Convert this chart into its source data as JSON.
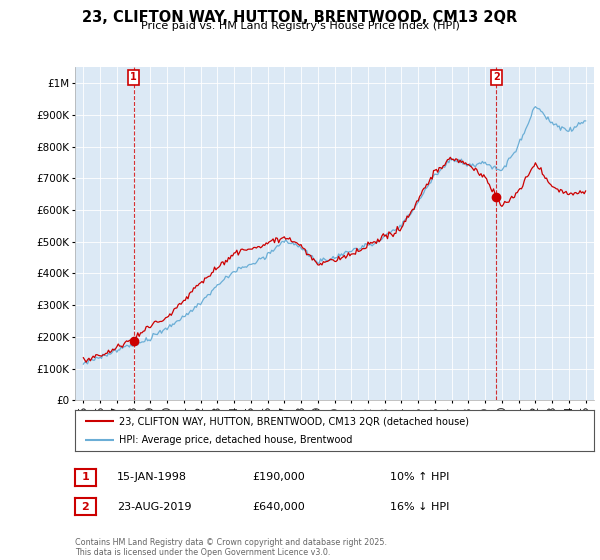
{
  "title": "23, CLIFTON WAY, HUTTON, BRENTWOOD, CM13 2QR",
  "subtitle": "Price paid vs. HM Land Registry's House Price Index (HPI)",
  "legend_line1": "23, CLIFTON WAY, HUTTON, BRENTWOOD, CM13 2QR (detached house)",
  "legend_line2": "HPI: Average price, detached house, Brentwood",
  "annotation1_date": "15-JAN-1998",
  "annotation1_price": "£190,000",
  "annotation1_hpi": "10% ↑ HPI",
  "annotation2_date": "23-AUG-2019",
  "annotation2_price": "£640,000",
  "annotation2_hpi": "16% ↓ HPI",
  "footnote": "Contains HM Land Registry data © Crown copyright and database right 2025.\nThis data is licensed under the Open Government Licence v3.0.",
  "sale1_year": 1998.04,
  "sale1_price": 190000,
  "sale2_year": 2019.65,
  "sale2_price": 640000,
  "hpi_color": "#6baed6",
  "price_color": "#cc0000",
  "annotation_box_color": "#cc0000",
  "plot_bg_color": "#dce9f5",
  "fig_bg_color": "#ffffff",
  "grid_color": "#ffffff",
  "ylim_min": 0,
  "ylim_max": 1050000,
  "xlim_min": 1994.5,
  "xlim_max": 2025.5
}
